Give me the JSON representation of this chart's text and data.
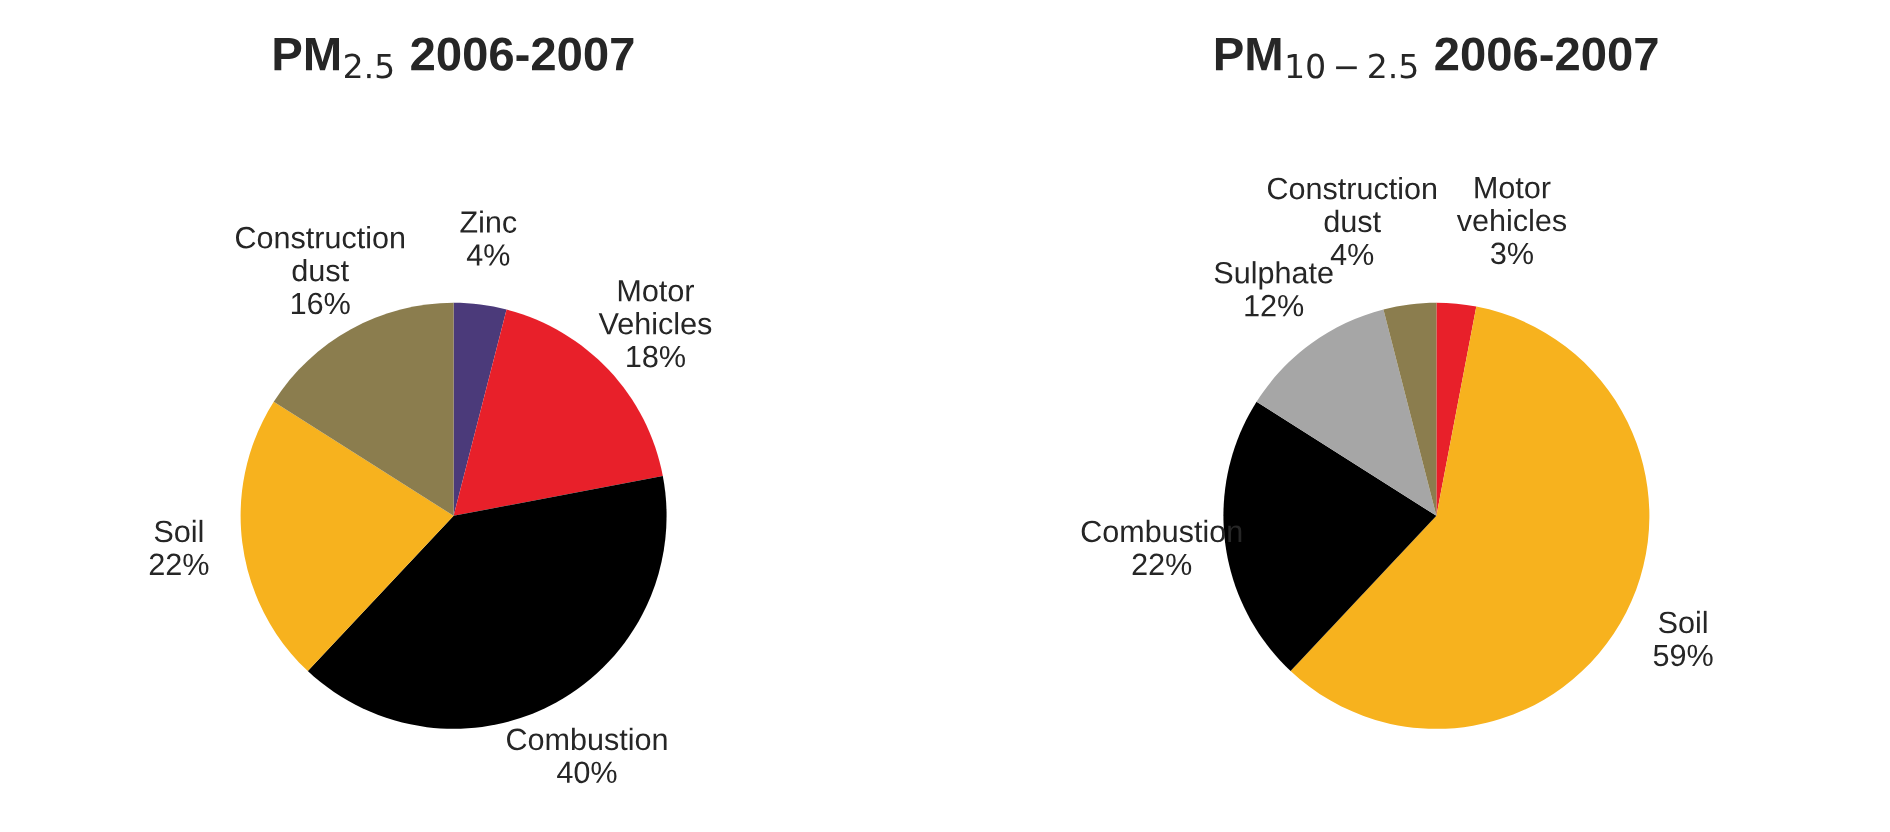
{
  "chart_data": [
    {
      "type": "pie",
      "title": "PM$_{2.5}$ 2006-2007",
      "categories": [
        "Zinc",
        "Motor Vehicles",
        "Combustion",
        "Soil",
        "Construction dust"
      ],
      "values": [
        4,
        18,
        40,
        22,
        16
      ],
      "value_labels": [
        "4%",
        "18%",
        "40%",
        "22%",
        "16%"
      ],
      "colors": [
        "#4b3a7a",
        "#e8202a",
        "#000000",
        "#f7b21e",
        "#8b7d4e"
      ]
    },
    {
      "type": "pie",
      "title": "PM$_{10−2.5}$ 2006-2007",
      "categories": [
        "Motor vehicles",
        "Soil",
        "Combustion",
        "Sulphate",
        "Construction dust"
      ],
      "values": [
        3,
        59,
        22,
        12,
        4
      ],
      "value_labels": [
        "3%",
        "59%",
        "22%",
        "12%",
        "4%"
      ],
      "colors": [
        "#e8202a",
        "#f7b21e",
        "#000000",
        "#a6a6a6",
        "#8b7d4e"
      ]
    }
  ]
}
